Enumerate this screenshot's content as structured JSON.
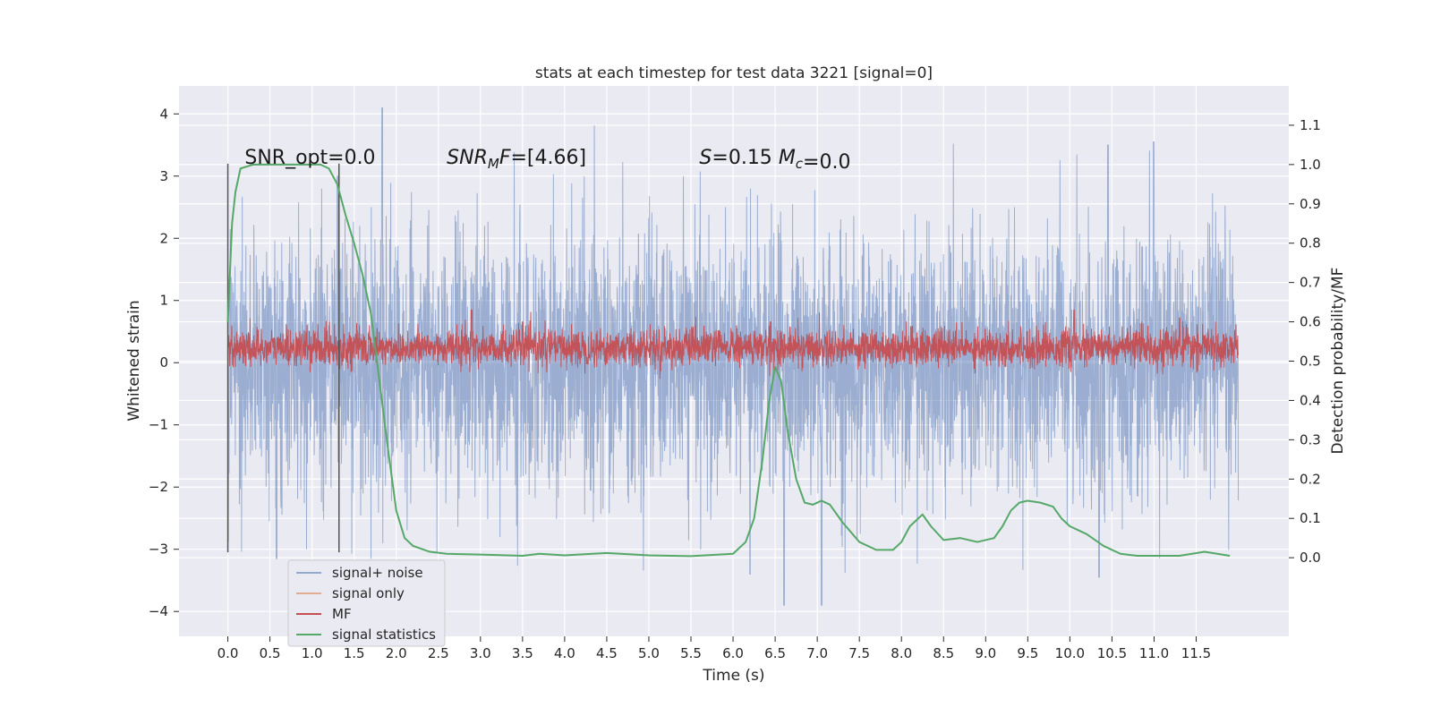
{
  "chart_data": {
    "type": "line",
    "title": "stats at each timestep for test data 3221 [signal=0]",
    "xlabel": "Time (s)",
    "ylabel_left": "Whitened strain",
    "ylabel_right": "Detection probability/MF",
    "xlim": [
      -0.58,
      12.6
    ],
    "ylim_left": [
      -4.4,
      4.45
    ],
    "ylim_right": [
      -0.2,
      1.2
    ],
    "xticks": [
      0.0,
      0.5,
      1.0,
      1.5,
      2.0,
      2.5,
      3.0,
      3.5,
      4.0,
      4.5,
      5.0,
      5.5,
      6.0,
      6.5,
      7.0,
      7.5,
      8.0,
      8.5,
      9.0,
      9.5,
      10.0,
      10.5,
      11.0,
      11.5
    ],
    "xtick_labels": [
      "0.0",
      "0.5",
      "1.0",
      "1.5",
      "2.0",
      "2.5",
      "3.0",
      "3.5",
      "4.0",
      "4.5",
      "5.0",
      "5.5",
      "6.0",
      "6.5",
      "7.0",
      "7.5",
      "8.0",
      "8.5",
      "9.0",
      "9.5",
      "10.0",
      "10.5",
      "11.0",
      "11.5"
    ],
    "yticks_left": [
      -4,
      -3,
      -2,
      -1,
      0,
      1,
      2,
      3,
      4
    ],
    "ytick_labels_left": [
      "−4",
      "−3",
      "−2",
      "−1",
      "0",
      "1",
      "2",
      "3",
      "4"
    ],
    "yticks_right": [
      0.0,
      0.1,
      0.2,
      0.3,
      0.4,
      0.5,
      0.6,
      0.7,
      0.8,
      0.9,
      1.0,
      1.1
    ],
    "ytick_labels_right": [
      "0.0",
      "0.1",
      "0.2",
      "0.3",
      "0.4",
      "0.5",
      "0.6",
      "0.7",
      "0.8",
      "0.9",
      "1.0",
      "1.1"
    ],
    "grid": true,
    "legend_position": "lower-left",
    "annotations": [
      {
        "text": "SNR_opt=0.0",
        "x": 0.2,
        "y": 3.2
      },
      {
        "text": "SNR_MF=[4.66]",
        "x": 2.6,
        "y": 3.2
      },
      {
        "text": "S=0.15   M_c=0.0",
        "x": 5.6,
        "y": 3.2
      }
    ],
    "vertical_markers": [
      {
        "x": 0.0,
        "y0": -3.05,
        "y1": 3.2
      },
      {
        "x": 1.32,
        "y0": -3.05,
        "y1": 3.2
      }
    ],
    "series": [
      {
        "name": "signal+ noise",
        "color": "#4c72b0",
        "axis": "left",
        "kind": "noise",
        "t_range": [
          0.0,
          12.0
        ],
        "typical_range": [
          -2.0,
          2.0
        ],
        "extremes": [
          [
            1.83,
            4.1
          ],
          [
            11.0,
            3.55
          ],
          [
            10.45,
            3.5
          ],
          [
            6.6,
            -3.9
          ],
          [
            7.05,
            -3.9
          ],
          [
            0.58,
            -3.15
          ],
          [
            10.35,
            -3.45
          ],
          [
            6.2,
            -3.4
          ],
          [
            1.3,
            3.0
          ]
        ]
      },
      {
        "name": "signal only",
        "color": "#dd8452",
        "axis": "left",
        "kind": "flat",
        "values": []
      },
      {
        "name": "MF",
        "color": "#c44e52",
        "axis": "right",
        "kind": "noise",
        "t_range": [
          0.0,
          12.0
        ],
        "typical_range": [
          0.5,
          0.57
        ],
        "extremes": [
          [
            2.9,
            0.63
          ],
          [
            3.5,
            0.6
          ],
          [
            10.05,
            0.63
          ],
          [
            6.45,
            0.6
          ],
          [
            11.3,
            0.61
          ]
        ]
      },
      {
        "name": "signal statistics",
        "color": "#55a868",
        "axis": "right",
        "kind": "line",
        "x": [
          0.0,
          0.05,
          0.09,
          0.15,
          0.3,
          0.5,
          0.8,
          1.0,
          1.1,
          1.2,
          1.3,
          1.4,
          1.5,
          1.6,
          1.7,
          1.8,
          1.9,
          2.0,
          2.1,
          2.2,
          2.4,
          2.6,
          3.0,
          3.5,
          3.7,
          4.0,
          4.5,
          5.0,
          5.5,
          6.0,
          6.15,
          6.25,
          6.35,
          6.43,
          6.5,
          6.57,
          6.65,
          6.75,
          6.85,
          6.95,
          7.05,
          7.15,
          7.3,
          7.5,
          7.7,
          7.9,
          8.0,
          8.1,
          8.2,
          8.25,
          8.35,
          8.5,
          8.7,
          8.9,
          9.1,
          9.2,
          9.3,
          9.4,
          9.5,
          9.65,
          9.8,
          9.9,
          10.0,
          10.2,
          10.4,
          10.6,
          10.8,
          11.0,
          11.3,
          11.6,
          11.9
        ],
        "values": [
          0.6,
          0.85,
          0.93,
          0.99,
          1.0,
          1.0,
          1.0,
          1.0,
          1.0,
          0.99,
          0.95,
          0.87,
          0.8,
          0.72,
          0.62,
          0.45,
          0.28,
          0.12,
          0.05,
          0.03,
          0.015,
          0.01,
          0.008,
          0.005,
          0.01,
          0.006,
          0.012,
          0.006,
          0.004,
          0.01,
          0.04,
          0.1,
          0.25,
          0.4,
          0.485,
          0.45,
          0.32,
          0.2,
          0.14,
          0.135,
          0.145,
          0.135,
          0.09,
          0.04,
          0.02,
          0.02,
          0.04,
          0.08,
          0.1,
          0.11,
          0.08,
          0.045,
          0.05,
          0.04,
          0.05,
          0.08,
          0.12,
          0.14,
          0.145,
          0.14,
          0.13,
          0.1,
          0.08,
          0.06,
          0.03,
          0.01,
          0.005,
          0.005,
          0.005,
          0.015,
          0.005
        ]
      }
    ]
  }
}
